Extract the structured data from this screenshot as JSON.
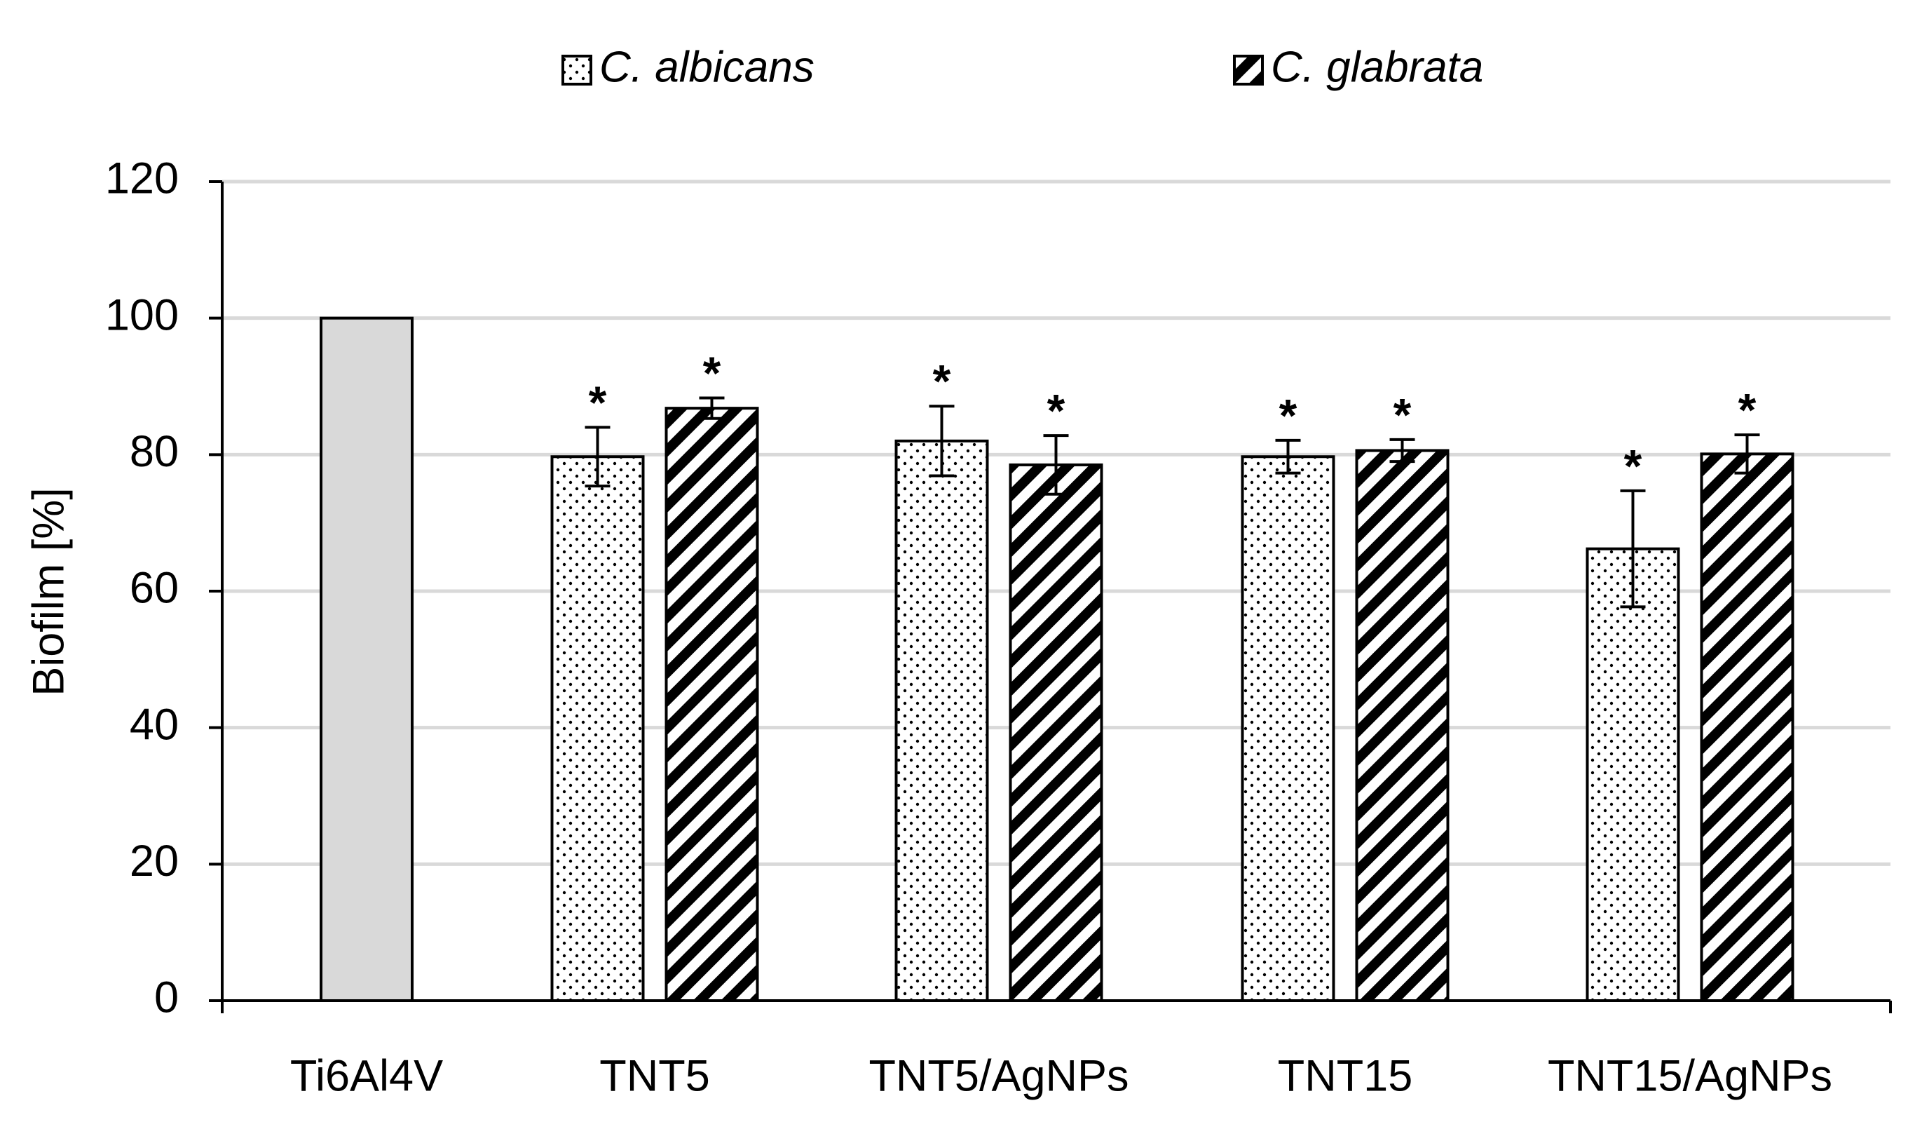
{
  "chart_data": {
    "type": "bar",
    "y_label": "Biofilm [%]",
    "categories": [
      "Ti6Al4V",
      "TNT5",
      "TNT5/AgNPs",
      "TNT15",
      "TNT15/AgNPs"
    ],
    "control": {
      "value": 100,
      "color": "#d9d9d9"
    },
    "series": [
      {
        "name": "C. albicans",
        "color": "#ffffff",
        "pattern": "dots",
        "values": [
          null,
          79.7,
          82.0,
          79.7,
          66.2
        ],
        "errors": [
          null,
          4.3,
          5.1,
          2.4,
          8.5
        ],
        "annotations": [
          null,
          "*",
          "*",
          "*",
          "*"
        ]
      },
      {
        "name": "C. glabrata",
        "color": "#ffffff",
        "pattern": "stripes",
        "values": [
          null,
          86.8,
          78.5,
          80.6,
          80.1
        ],
        "errors": [
          null,
          1.5,
          4.3,
          1.6,
          2.8
        ],
        "annotations": [
          null,
          "*",
          "*",
          "*",
          "*"
        ]
      }
    ],
    "ylim": [
      0,
      120
    ],
    "yticks": [
      0,
      20,
      40,
      60,
      80,
      100,
      120
    ],
    "grid": true,
    "legend": "top"
  }
}
